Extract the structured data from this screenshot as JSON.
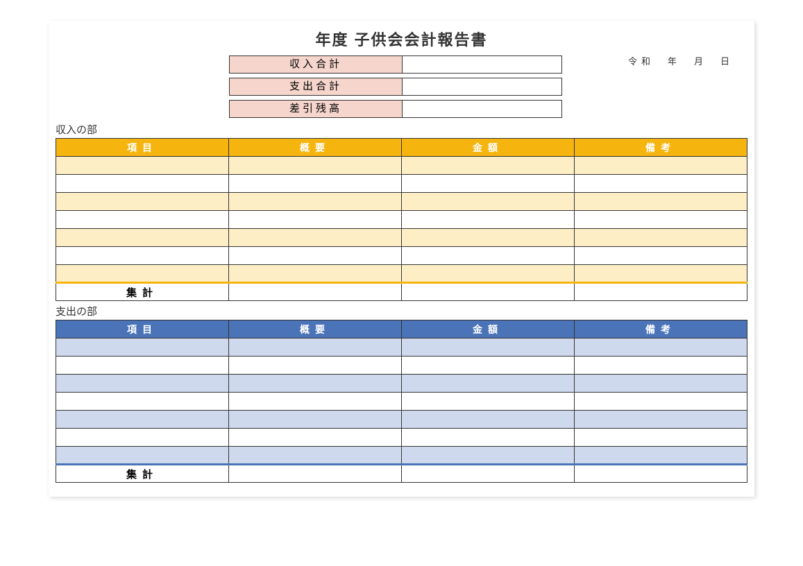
{
  "title": "年度 子供会会計報告書",
  "date_line": "令和　年　月　日",
  "summary": {
    "rows": [
      {
        "label": "収入合計",
        "value": "",
        "label_bg": "#f5d5cc"
      },
      {
        "label": "支出合計",
        "value": "",
        "label_bg": "#f5d5cc"
      },
      {
        "label": "差引残高",
        "value": "",
        "label_bg": "#f5d5cc"
      }
    ]
  },
  "income_section": {
    "title": "収入の部",
    "header_bg": "#f5b40e",
    "alt_row_bg": "#fdeec5",
    "total_border_color": "#f5b40e",
    "columns": [
      "項目",
      "概要",
      "金額",
      "備考"
    ],
    "rows": [
      [
        "",
        "",
        "",
        ""
      ],
      [
        "",
        "",
        "",
        ""
      ],
      [
        "",
        "",
        "",
        ""
      ],
      [
        "",
        "",
        "",
        ""
      ],
      [
        "",
        "",
        "",
        ""
      ],
      [
        "",
        "",
        "",
        ""
      ],
      [
        "",
        "",
        "",
        ""
      ]
    ],
    "total_label": "集計"
  },
  "expense_section": {
    "title": "支出の部",
    "header_bg": "#4a73b8",
    "alt_row_bg": "#cfd9ed",
    "total_border_color": "#4a73b8",
    "columns": [
      "項目",
      "概要",
      "金額",
      "備考"
    ],
    "rows": [
      [
        "",
        "",
        "",
        ""
      ],
      [
        "",
        "",
        "",
        ""
      ],
      [
        "",
        "",
        "",
        ""
      ],
      [
        "",
        "",
        "",
        ""
      ],
      [
        "",
        "",
        "",
        ""
      ],
      [
        "",
        "",
        "",
        ""
      ],
      [
        "",
        "",
        "",
        ""
      ]
    ],
    "total_label": "集計"
  }
}
